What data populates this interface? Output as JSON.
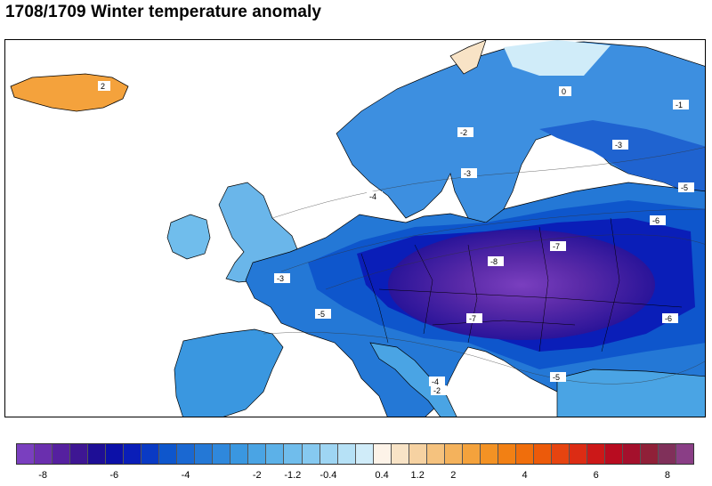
{
  "title": "1708/1709 Winter temperature anomaly",
  "map": {
    "contour_labels": [
      "-1",
      "-2",
      "-3",
      "-4",
      "-5",
      "-6",
      "-7",
      "-8",
      "0",
      "2"
    ]
  },
  "colorbar": {
    "colors": [
      "#7a3fbf",
      "#6a2fae",
      "#55209f",
      "#3e1693",
      "#1e0e96",
      "#0c10a8",
      "#0a1eb8",
      "#0a3ac4",
      "#0e56cc",
      "#1a68d2",
      "#2478d6",
      "#2f88dc",
      "#3a97e0",
      "#4aa4e4",
      "#5cb1e8",
      "#70bdec",
      "#86c9f0",
      "#9ed5f3",
      "#b6e1f6",
      "#d0ecf9",
      "#fdf3e8",
      "#f8e3c6",
      "#f6d2a2",
      "#f5c27e",
      "#f4b25c",
      "#f4a23c",
      "#f39224",
      "#f28014",
      "#f06e0c",
      "#ec5a0a",
      "#e64410",
      "#dc2c14",
      "#cc1818",
      "#b80c20",
      "#a4102c",
      "#902038",
      "#80305a",
      "#8a3e86"
    ],
    "tick_labels": [
      {
        "label": "-8",
        "index": 1
      },
      {
        "label": "-6",
        "index": 5
      },
      {
        "label": "-4",
        "index": 9
      },
      {
        "label": "-2",
        "index": 13
      },
      {
        "label": "-1.2",
        "index": 15
      },
      {
        "label": "-0.4",
        "index": 17
      },
      {
        "label": "0.4",
        "index": 20
      },
      {
        "label": "1.2",
        "index": 22
      },
      {
        "label": "2",
        "index": 24
      },
      {
        "label": "4",
        "index": 28
      },
      {
        "label": "6",
        "index": 32
      },
      {
        "label": "8",
        "index": 36
      }
    ]
  }
}
